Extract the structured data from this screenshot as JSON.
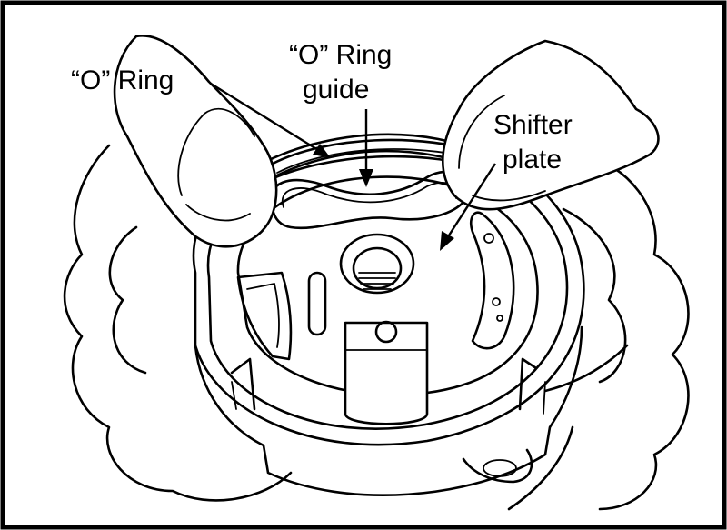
{
  "labels": {
    "o_ring": "“O” Ring",
    "o_ring_guide_line1": "“O” Ring",
    "o_ring_guide_line2": "guide",
    "shifter_plate_line1": "Shifter",
    "shifter_plate_line2": "plate"
  },
  "colors": {
    "ink": "#000000",
    "paper": "#ffffff"
  }
}
